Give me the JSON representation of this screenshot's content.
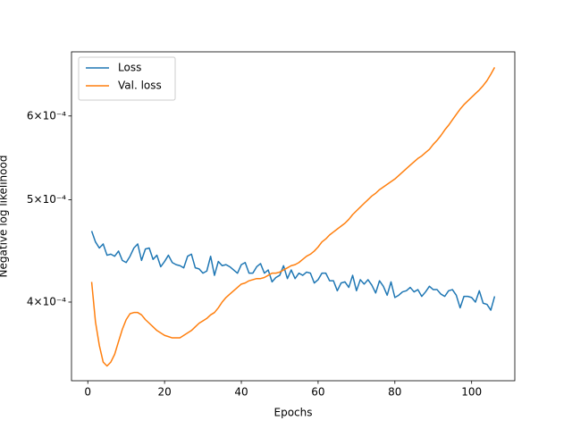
{
  "chart_data": {
    "type": "line",
    "xlabel": "Epochs",
    "ylabel": "Negative log likelihood",
    "log_y": true,
    "legend": "upper left",
    "x": [
      1,
      2,
      3,
      4,
      5,
      6,
      7,
      8,
      9,
      10,
      11,
      12,
      13,
      14,
      15,
      16,
      17,
      18,
      19,
      20,
      21,
      22,
      23,
      24,
      25,
      26,
      27,
      28,
      29,
      30,
      31,
      32,
      33,
      34,
      35,
      36,
      37,
      38,
      39,
      40,
      41,
      42,
      43,
      44,
      45,
      46,
      47,
      48,
      49,
      50,
      51,
      52,
      53,
      54,
      55,
      56,
      57,
      58,
      59,
      60,
      61,
      62,
      63,
      64,
      65,
      66,
      67,
      68,
      69,
      70,
      71,
      72,
      73,
      74,
      75,
      76,
      77,
      78,
      79,
      80,
      81,
      82,
      83,
      84,
      85,
      86,
      87,
      88,
      89,
      90,
      91,
      92,
      93,
      94,
      95,
      96,
      97,
      98,
      99,
      100,
      101,
      102,
      103,
      104,
      105,
      106
    ],
    "series": [
      {
        "name": "Loss",
        "color": "#1f77b4",
        "values": [
          0.000467,
          0.000456,
          0.00045,
          0.000454,
          0.000443,
          0.000444,
          0.000442,
          0.000447,
          0.000438,
          0.000436,
          0.000442,
          0.00045,
          0.000454,
          0.000438,
          0.000449,
          0.00045,
          0.000439,
          0.000443,
          0.000432,
          0.000437,
          0.000443,
          0.000436,
          0.000434,
          0.000433,
          0.000431,
          0.000442,
          0.000444,
          0.000431,
          0.00043,
          0.000426,
          0.000428,
          0.000442,
          0.000424,
          0.000437,
          0.000433,
          0.000434,
          0.000432,
          0.000429,
          0.000426,
          0.000434,
          0.000436,
          0.000426,
          0.000426,
          0.000432,
          0.000435,
          0.000426,
          0.000429,
          0.000418,
          0.000422,
          0.000424,
          0.000433,
          0.000421,
          0.000429,
          0.000421,
          0.000426,
          0.000424,
          0.000427,
          0.000426,
          0.000417,
          0.00042,
          0.000426,
          0.000426,
          0.000419,
          0.000419,
          0.00041,
          0.000417,
          0.000418,
          0.000413,
          0.000424,
          0.00041,
          0.00042,
          0.000416,
          0.00042,
          0.000415,
          0.000408,
          0.000419,
          0.000414,
          0.000406,
          0.000418,
          0.000404,
          0.000406,
          0.000409,
          0.00041,
          0.000413,
          0.000409,
          0.000411,
          0.000405,
          0.000409,
          0.000414,
          0.000411,
          0.000411,
          0.000407,
          0.000405,
          0.00041,
          0.000411,
          0.000406,
          0.000395,
          0.000405,
          0.000405,
          0.000404,
          0.0004,
          0.00041,
          0.000399,
          0.000398,
          0.000393,
          0.000405
        ]
      },
      {
        "name": "Val. loss",
        "color": "#ff7f0e",
        "values": [
          0.000418,
          0.000383,
          0.000364,
          0.000351,
          0.000348,
          0.000351,
          0.000357,
          0.000367,
          0.000377,
          0.000385,
          0.00039,
          0.000391,
          0.000391,
          0.000389,
          0.000385,
          0.000382,
          0.000379,
          0.000376,
          0.000374,
          0.000372,
          0.000371,
          0.00037,
          0.00037,
          0.00037,
          0.000372,
          0.000374,
          0.000376,
          0.000379,
          0.000382,
          0.000384,
          0.000386,
          0.000389,
          0.000391,
          0.000395,
          0.0004,
          0.000404,
          0.000407,
          0.00041,
          0.000413,
          0.000416,
          0.000417,
          0.000419,
          0.00042,
          0.000421,
          0.000421,
          0.000422,
          0.000424,
          0.000426,
          0.000426,
          0.000427,
          0.000429,
          0.000431,
          0.000433,
          0.000434,
          0.000436,
          0.000439,
          0.000442,
          0.000444,
          0.000447,
          0.000451,
          0.000456,
          0.000459,
          0.000463,
          0.000466,
          0.000469,
          0.000472,
          0.000475,
          0.000479,
          0.000484,
          0.000488,
          0.000492,
          0.000496,
          0.0005,
          0.000504,
          0.000507,
          0.000511,
          0.000514,
          0.000517,
          0.00052,
          0.000523,
          0.000527,
          0.000531,
          0.000535,
          0.000539,
          0.000543,
          0.000547,
          0.00055,
          0.000554,
          0.000558,
          0.000564,
          0.000569,
          0.000575,
          0.000582,
          0.000588,
          0.000595,
          0.000602,
          0.000609,
          0.000615,
          0.00062,
          0.000625,
          0.00063,
          0.000635,
          0.000641,
          0.000648,
          0.000657,
          0.000667
        ]
      }
    ],
    "xlim": [
      -4.25,
      111.25
    ],
    "xticks": [
      0,
      20,
      40,
      60,
      80,
      100
    ],
    "ylim": [
      0.000337,
      0.00069
    ],
    "yticks": [
      {
        "value": 0.0004,
        "label": "4×10⁻⁴"
      },
      {
        "value": 0.0005,
        "label": "5×10⁻⁴"
      },
      {
        "value": 0.0006,
        "label": "6×10⁻⁴"
      }
    ]
  }
}
